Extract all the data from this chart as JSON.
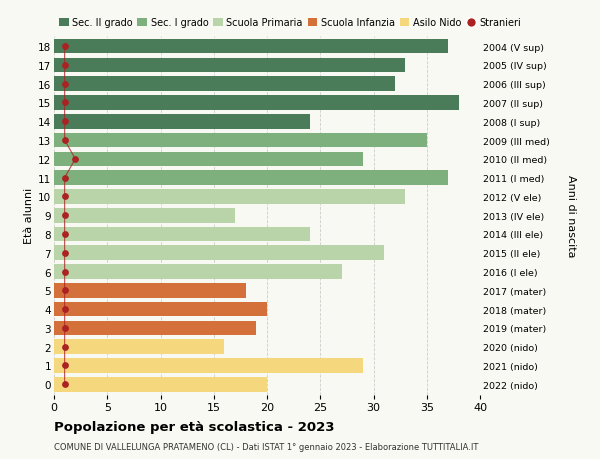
{
  "ages": [
    18,
    17,
    16,
    15,
    14,
    13,
    12,
    11,
    10,
    9,
    8,
    7,
    6,
    5,
    4,
    3,
    2,
    1,
    0
  ],
  "right_labels": [
    "2004 (V sup)",
    "2005 (IV sup)",
    "2006 (III sup)",
    "2007 (II sup)",
    "2008 (I sup)",
    "2009 (III med)",
    "2010 (II med)",
    "2011 (I med)",
    "2012 (V ele)",
    "2013 (IV ele)",
    "2014 (III ele)",
    "2015 (II ele)",
    "2016 (I ele)",
    "2017 (mater)",
    "2018 (mater)",
    "2019 (mater)",
    "2020 (nido)",
    "2021 (nido)",
    "2022 (nido)"
  ],
  "bar_values": [
    37,
    33,
    32,
    38,
    24,
    35,
    29,
    37,
    33,
    17,
    24,
    31,
    27,
    18,
    20,
    19,
    16,
    29,
    20
  ],
  "bar_colors": [
    "#4a7c59",
    "#4a7c59",
    "#4a7c59",
    "#4a7c59",
    "#4a7c59",
    "#7db07d",
    "#7db07d",
    "#7db07d",
    "#b8d4a8",
    "#b8d4a8",
    "#b8d4a8",
    "#b8d4a8",
    "#b8d4a8",
    "#d4703a",
    "#d4703a",
    "#d4703a",
    "#f5d87e",
    "#f5d87e",
    "#f5d87e"
  ],
  "stranieri_values": [
    1,
    1,
    1,
    1,
    1,
    1,
    2,
    1,
    1,
    1,
    1,
    1,
    1,
    1,
    1,
    1,
    1,
    1,
    1
  ],
  "stranieri_color": "#aa2222",
  "title": "Popolazione per età scolastica - 2023",
  "subtitle": "COMUNE DI VALLELUNGA PRATAMENO (CL) - Dati ISTAT 1° gennaio 2023 - Elaborazione TUTTITALIA.IT",
  "ylabel": "Età alunni",
  "right_ylabel": "Anni di nascita",
  "xlim": [
    0,
    40
  ],
  "xticks": [
    0,
    5,
    10,
    15,
    20,
    25,
    30,
    35,
    40
  ],
  "legend_labels": [
    "Sec. II grado",
    "Sec. I grado",
    "Scuola Primaria",
    "Scuola Infanzia",
    "Asilo Nido",
    "Stranieri"
  ],
  "legend_colors": [
    "#4a7c59",
    "#7db07d",
    "#b8d4a8",
    "#d4703a",
    "#f5d87e",
    "#aa2222"
  ],
  "bg_color": "#f9f9f4",
  "grid_color": "#cccccc",
  "bar_height": 0.78
}
